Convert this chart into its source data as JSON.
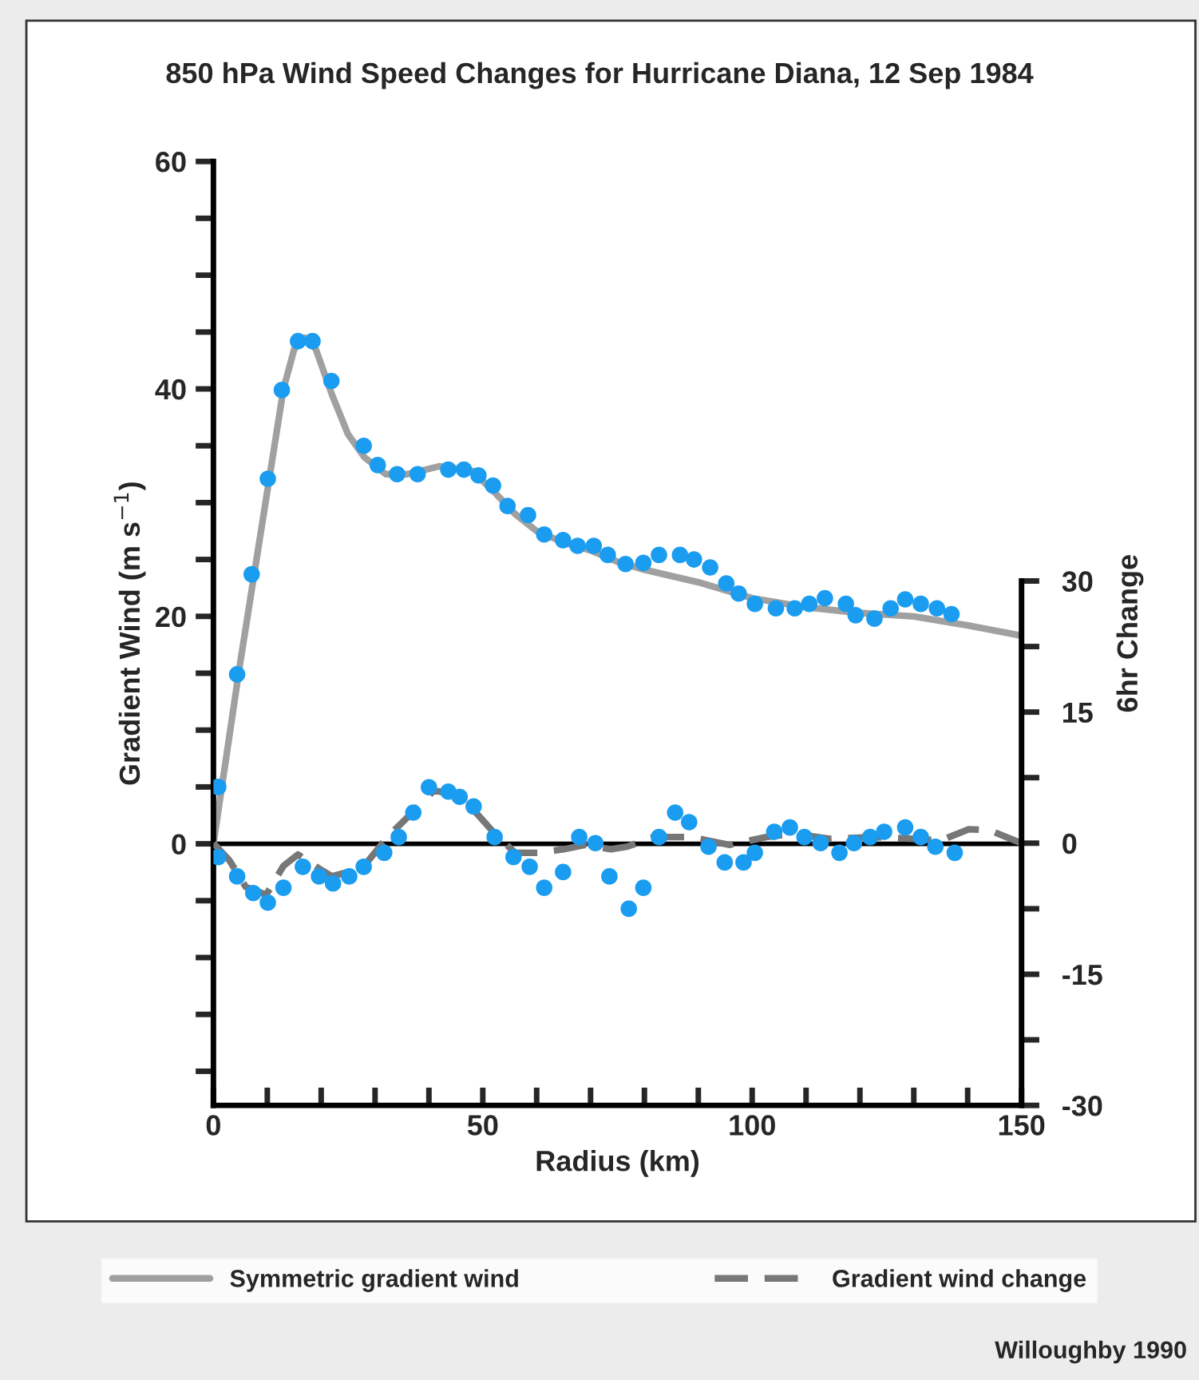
{
  "chart_data": {
    "type": "line",
    "title": "850 hPa Wind Speed Changes for Hurricane Diana, 12 Sep 1984",
    "xlabel": "Radius (km)",
    "ylabel": "Gradient Wind (m s$^{−1}$)",
    "y2label": "6hr Change",
    "annotations": [
      "Willoughby 1990"
    ],
    "xlim": [
      0,
      150
    ],
    "xticks": [
      0,
      {
        "value": 10,
        "label": null
      },
      {
        "value": 20,
        "label": null
      },
      {
        "value": 30,
        "label": null
      },
      {
        "value": 40,
        "label": null
      },
      50,
      {
        "value": 60,
        "label": null
      },
      {
        "value": 70,
        "label": null
      },
      {
        "value": 80,
        "label": null
      },
      {
        "value": 90,
        "label": null
      },
      100,
      {
        "value": 110,
        "label": null
      },
      {
        "value": 120,
        "label": null
      },
      {
        "value": 130,
        "label": null
      },
      {
        "value": 140,
        "label": null
      },
      150
    ],
    "ylim": [
      -23,
      60
    ],
    "yticks": [
      {
        "value": -20,
        "label": null
      },
      {
        "value": -15,
        "label": null
      },
      {
        "value": -10,
        "label": null
      },
      {
        "value": -5,
        "label": null
      },
      0,
      {
        "value": 5,
        "label": null
      },
      {
        "value": 10,
        "label": null
      },
      {
        "value": 15,
        "label": null
      },
      20,
      {
        "value": 25,
        "label": null
      },
      {
        "value": 30,
        "label": null
      },
      {
        "value": 35,
        "label": null
      },
      40,
      {
        "value": 45,
        "label": null
      },
      {
        "value": 50,
        "label": null
      },
      {
        "value": 55,
        "label": null
      },
      60
    ],
    "y2lim": [
      -30,
      78
    ],
    "y2ticks": [
      -30,
      {
        "value": -22.5,
        "label": null
      },
      -15,
      {
        "value": -7.5,
        "label": null
      },
      0,
      {
        "value": 7.5,
        "label": null
      },
      15,
      {
        "value": 22.5,
        "label": null
      },
      30
    ],
    "ref_lines": [
      {
        "axis": "y",
        "value": 0,
        "color": "#000000"
      }
    ],
    "grid": false,
    "legend": "bottom",
    "series": [
      {
        "type": "line",
        "name": "Symmetric gradient wind",
        "color": "#a0a0a0",
        "line_style": "solid",
        "marker": "none",
        "x": [
          0,
          5,
          10,
          13,
          15,
          17,
          19,
          22,
          25,
          28,
          32,
          36,
          42,
          48,
          52,
          56,
          60,
          65,
          70,
          75,
          80,
          90,
          100,
          110,
          120,
          130,
          140,
          150
        ],
        "values": [
          0,
          16,
          31,
          40,
          43.5,
          44.5,
          43.5,
          39.5,
          36,
          34,
          32.5,
          32.5,
          33.2,
          32.8,
          31,
          29,
          27.5,
          26.5,
          25.8,
          24.8,
          24.1,
          23,
          21.6,
          20.8,
          20.3,
          20,
          19.2,
          18.3
        ]
      },
      {
        "type": "line",
        "name": "Gradient wind change",
        "color": "#777777",
        "line_style": "dashed",
        "marker": "none",
        "axis": "y2",
        "x": [
          0,
          3,
          6,
          9.8,
          13,
          15.7,
          19.6,
          22,
          25,
          28.5,
          32.3,
          37.4,
          40.9,
          44.2,
          48.3,
          52.2,
          56,
          60.2,
          65,
          69,
          73.8,
          76.8,
          81.8,
          88.6,
          95.8,
          102.6,
          107.6,
          114.4,
          122.4,
          130.1,
          135,
          140.2,
          144,
          150
        ],
        "values": [
          0,
          -2,
          -5,
          -5.9,
          -2.6,
          -1.3,
          -2.9,
          -3.8,
          -3.3,
          -2.2,
          0.7,
          3.8,
          6.0,
          5.7,
          3.8,
          1.1,
          -1.1,
          -1.1,
          -0.7,
          -0.2,
          -0.7,
          -0.4,
          0.7,
          0.7,
          -0.2,
          0.7,
          1.1,
          0.5,
          0.7,
          0.5,
          0.3,
          1.6,
          1.5,
          0
        ]
      },
      {
        "type": "scatter",
        "color": "#1a9cf0",
        "marker": "circle",
        "x": [
          0.9,
          4.4,
          7.1,
          10.1,
          12.7,
          15.7,
          18.4,
          21.9,
          27.9,
          30.5,
          34.1,
          37.9,
          43.6,
          46.5,
          49.2,
          51.9,
          54.6,
          58.4,
          61.4,
          64.9,
          67.6,
          70.6,
          73.2,
          76.5,
          79.8,
          82.7,
          86.6,
          89.2,
          92.2,
          95.2,
          97.5,
          100.5,
          104.4,
          107.9,
          110.6,
          113.5,
          117.4,
          119.2,
          122.7,
          125.7,
          128.4,
          131.3,
          134.3,
          137.0
        ],
        "values": [
          5.0,
          14.9,
          23.7,
          32.1,
          39.9,
          44.2,
          44.2,
          40.7,
          35.0,
          33.3,
          32.5,
          32.5,
          32.9,
          32.9,
          32.4,
          31.5,
          29.7,
          28.9,
          27.2,
          26.7,
          26.2,
          26.2,
          25.4,
          24.6,
          24.7,
          25.4,
          25.4,
          25.0,
          24.3,
          22.9,
          22.0,
          21.1,
          20.7,
          20.7,
          21.1,
          21.6,
          21.1,
          20.1,
          19.8,
          20.7,
          21.5,
          21.1,
          20.7,
          20.2
        ]
      },
      {
        "type": "scatter",
        "color": "#1a9cf0",
        "marker": "circle",
        "axis": "y2",
        "x": [
          0.9,
          4.4,
          7.4,
          10.1,
          13.0,
          16.6,
          19.6,
          22.2,
          25.2,
          27.9,
          31.7,
          34.4,
          37.1,
          40.0,
          43.6,
          45.7,
          48.3,
          52.2,
          55.7,
          58.7,
          61.4,
          64.9,
          67.9,
          70.9,
          73.5,
          77.1,
          79.8,
          82.7,
          85.7,
          88.3,
          91.9,
          94.9,
          98.4,
          100.5,
          104.1,
          107.0,
          109.7,
          112.7,
          116.2,
          118.9,
          121.9,
          124.5,
          128.4,
          131.3,
          134.0,
          137.6
        ],
        "values": [
          -1.6,
          -3.8,
          -5.7,
          -6.8,
          -5.1,
          -2.7,
          -3.8,
          -4.6,
          -3.8,
          -2.7,
          -1.1,
          0.7,
          3.5,
          6.4,
          5.9,
          5.3,
          4.2,
          0.7,
          -1.6,
          -2.7,
          -5.1,
          -3.3,
          0.7,
          0,
          -3.8,
          -7.5,
          -5.1,
          0.7,
          3.5,
          2.4,
          -0.4,
          -2.2,
          -2.2,
          -1.1,
          1.3,
          1.8,
          0.7,
          0,
          -1.1,
          0,
          0.7,
          1.3,
          1.8,
          0.7,
          -0.4,
          -1.1
        ]
      }
    ]
  }
}
